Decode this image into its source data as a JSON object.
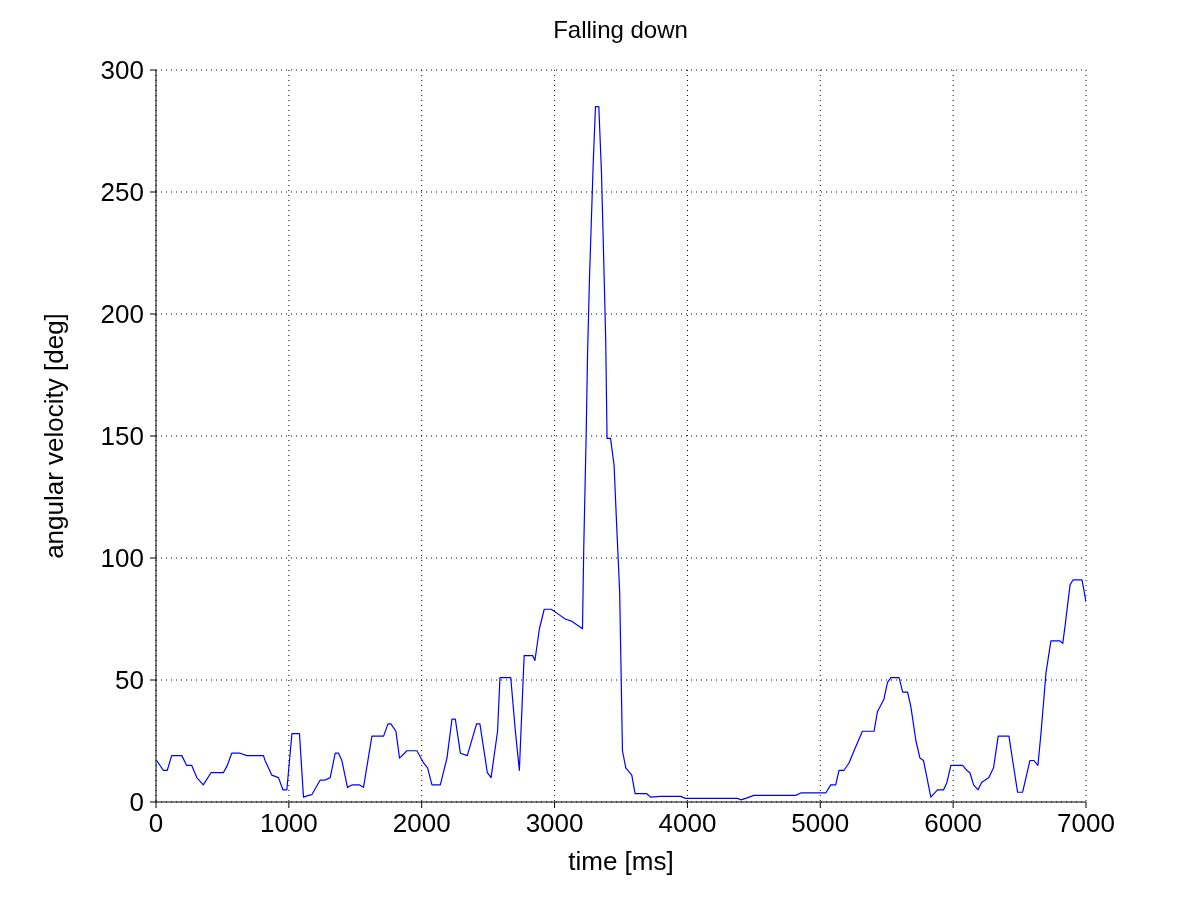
{
  "chart_data": {
    "type": "line",
    "title": "Falling down",
    "xlabel": "time [ms]",
    "ylabel": "angular velocity [deg]",
    "x": [
      5,
      55,
      85,
      118,
      194,
      231,
      269,
      307,
      356,
      414,
      507,
      537,
      570,
      633,
      683,
      809,
      821,
      872,
      922,
      955,
      985,
      1023,
      1080,
      1110,
      1136,
      1173,
      1236,
      1273,
      1311,
      1349,
      1374,
      1399,
      1441,
      1475,
      1532,
      1562,
      1625,
      1713,
      1746,
      1768,
      1806,
      1833,
      1889,
      1964,
      2014,
      2044,
      2077,
      2140,
      2190,
      2228,
      2253,
      2291,
      2343,
      2413,
      2438,
      2494,
      2522,
      2571,
      2589,
      2670,
      2705,
      2735,
      2771,
      2835,
      2852,
      2886,
      2922,
      2975,
      3028,
      3080,
      3132,
      3210,
      3220,
      3238,
      3248,
      3263,
      3291,
      3308,
      3333,
      3353,
      3371,
      3385,
      3395,
      3421,
      3448,
      3466,
      3490,
      3511,
      3536,
      3581,
      3606,
      3694,
      3722,
      3798,
      3948,
      3986,
      4376,
      4401,
      4438,
      4501,
      4815,
      4853,
      5041,
      5079,
      5116,
      5141,
      5179,
      5216,
      5254,
      5317,
      5405,
      5430,
      5478,
      5506,
      5532,
      5593,
      5620,
      5657,
      5682,
      5720,
      5750,
      5777,
      5832,
      5882,
      5928,
      5953,
      5983,
      6071,
      6103,
      6126,
      6154,
      6188,
      6214,
      6269,
      6304,
      6339,
      6420,
      6448,
      6485,
      6523,
      6578,
      6608,
      6638,
      6661,
      6699,
      6736,
      6804,
      6825,
      6842,
      6880,
      6902,
      6970,
      7000
    ],
    "series": [
      {
        "color": "#0000ff",
        "values": [
          17,
          13,
          13,
          19,
          19,
          15,
          15,
          10,
          7,
          12,
          12,
          15,
          20,
          20,
          19,
          19,
          17,
          11,
          10,
          5,
          5,
          28,
          28,
          2,
          2.5,
          3,
          9,
          9,
          10,
          20,
          20,
          17,
          6,
          7,
          7,
          6,
          27,
          27,
          32,
          32,
          29,
          18,
          21,
          21,
          16,
          14,
          7,
          7,
          18,
          34,
          34,
          20,
          19,
          32,
          32,
          12,
          10,
          29,
          51,
          51,
          29,
          13,
          60,
          60,
          58,
          71,
          79,
          79,
          77,
          75,
          74,
          71,
          105,
          151,
          183,
          215,
          262,
          285,
          285,
          258,
          220,
          189,
          149,
          149,
          138,
          115,
          86,
          21,
          14,
          11,
          3.4,
          3.4,
          2,
          2.3,
          2.3,
          1.5,
          1.5,
          0.9,
          1.5,
          2.7,
          2.7,
          3.7,
          3.7,
          7,
          7,
          13,
          13,
          16,
          21,
          29,
          29,
          37,
          42,
          49,
          51,
          51,
          45,
          45,
          39,
          25,
          18,
          17,
          2,
          5,
          5,
          8,
          15,
          15,
          13,
          12,
          7,
          5,
          8,
          10,
          14,
          27,
          27,
          17,
          4,
          4,
          17,
          17,
          15,
          28,
          53,
          66,
          66,
          65,
          72,
          89,
          91,
          91,
          82
        ]
      }
    ],
    "xlim": [
      0,
      7000
    ],
    "xticks": [
      0,
      1000,
      2000,
      3000,
      4000,
      5000,
      6000,
      7000
    ],
    "ylim": [
      0,
      300
    ],
    "yticks": [
      0,
      50,
      100,
      150,
      200,
      250,
      300
    ],
    "grid": true,
    "marker": "none",
    "line_style": "solid"
  }
}
